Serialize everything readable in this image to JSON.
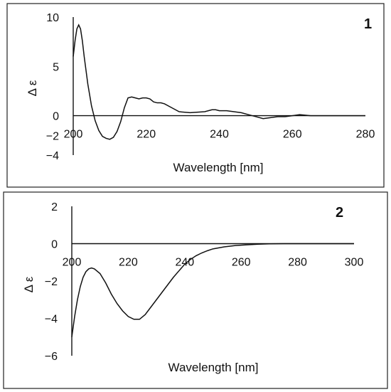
{
  "chart_data": [
    {
      "type": "line",
      "panel_label": "1",
      "xlabel": "Wavelength [nm]",
      "ylabel": "Δ ε",
      "xlim": [
        200,
        280
      ],
      "ylim": [
        -4,
        10
      ],
      "xticks": [
        200,
        220,
        240,
        260,
        280
      ],
      "yticks": [
        -4,
        -2,
        0,
        5,
        10
      ],
      "ytick_labels": [
        "−4",
        "−2",
        "0",
        "5",
        "10"
      ],
      "series": [
        {
          "points": [
            [
              200,
              6.0
            ],
            [
              200.5,
              7.6
            ],
            [
              201,
              8.8
            ],
            [
              201.5,
              9.2
            ],
            [
              202,
              8.8
            ],
            [
              202.5,
              7.6
            ],
            [
              203,
              6.0
            ],
            [
              204,
              3.2
            ],
            [
              205,
              1.0
            ],
            [
              206,
              -0.5
            ],
            [
              207,
              -1.5
            ],
            [
              208,
              -2.1
            ],
            [
              209,
              -2.3
            ],
            [
              210,
              -2.4
            ],
            [
              211,
              -2.2
            ],
            [
              212,
              -1.6
            ],
            [
              213,
              -0.6
            ],
            [
              214,
              0.8
            ],
            [
              215,
              1.8
            ],
            [
              216,
              1.9
            ],
            [
              217,
              1.8
            ],
            [
              218,
              1.7
            ],
            [
              219,
              1.8
            ],
            [
              220,
              1.8
            ],
            [
              221,
              1.7
            ],
            [
              222,
              1.4
            ],
            [
              223,
              1.3
            ],
            [
              224,
              1.3
            ],
            [
              225,
              1.2
            ],
            [
              227,
              0.8
            ],
            [
              229,
              0.4
            ],
            [
              232,
              0.3
            ],
            [
              236,
              0.4
            ],
            [
              238,
              0.6
            ],
            [
              239,
              0.6
            ],
            [
              240,
              0.5
            ],
            [
              242,
              0.5
            ],
            [
              244,
              0.4
            ],
            [
              246,
              0.3
            ],
            [
              248,
              0.1
            ],
            [
              250,
              -0.1
            ],
            [
              252,
              -0.3
            ],
            [
              254,
              -0.2
            ],
            [
              256,
              -0.1
            ],
            [
              258,
              -0.1
            ],
            [
              260,
              0.0
            ],
            [
              262,
              0.1
            ],
            [
              265,
              0.0
            ],
            [
              270,
              0.0
            ],
            [
              280,
              0.0
            ]
          ]
        }
      ]
    },
    {
      "type": "line",
      "panel_label": "2",
      "xlabel": "Wavelength [nm]",
      "ylabel": "Δ ε",
      "xlim": [
        200,
        300
      ],
      "ylim": [
        -6,
        2
      ],
      "xticks": [
        200,
        220,
        240,
        260,
        280,
        300
      ],
      "yticks": [
        -6,
        -4,
        -2,
        0,
        2
      ],
      "ytick_labels": [
        "−6",
        "−4",
        "−2",
        "0",
        "2"
      ],
      "series": [
        {
          "points": [
            [
              200,
              -5.0
            ],
            [
              201,
              -3.9
            ],
            [
              202,
              -3.0
            ],
            [
              203,
              -2.3
            ],
            [
              204,
              -1.8
            ],
            [
              205,
              -1.5
            ],
            [
              206,
              -1.35
            ],
            [
              207,
              -1.3
            ],
            [
              208,
              -1.35
            ],
            [
              210,
              -1.6
            ],
            [
              212,
              -2.1
            ],
            [
              214,
              -2.7
            ],
            [
              216,
              -3.2
            ],
            [
              218,
              -3.6
            ],
            [
              220,
              -3.9
            ],
            [
              222,
              -4.05
            ],
            [
              224,
              -4.05
            ],
            [
              226,
              -3.8
            ],
            [
              228,
              -3.4
            ],
            [
              230,
              -3.0
            ],
            [
              232,
              -2.6
            ],
            [
              234,
              -2.2
            ],
            [
              236,
              -1.8
            ],
            [
              238,
              -1.45
            ],
            [
              240,
              -1.1
            ],
            [
              242,
              -0.85
            ],
            [
              244,
              -0.65
            ],
            [
              246,
              -0.5
            ],
            [
              248,
              -0.38
            ],
            [
              250,
              -0.28
            ],
            [
              254,
              -0.17
            ],
            [
              258,
              -0.1
            ],
            [
              262,
              -0.06
            ],
            [
              266,
              -0.03
            ],
            [
              270,
              -0.01
            ],
            [
              275,
              0.0
            ],
            [
              280,
              0.0
            ],
            [
              300,
              0.0
            ]
          ]
        }
      ]
    }
  ]
}
